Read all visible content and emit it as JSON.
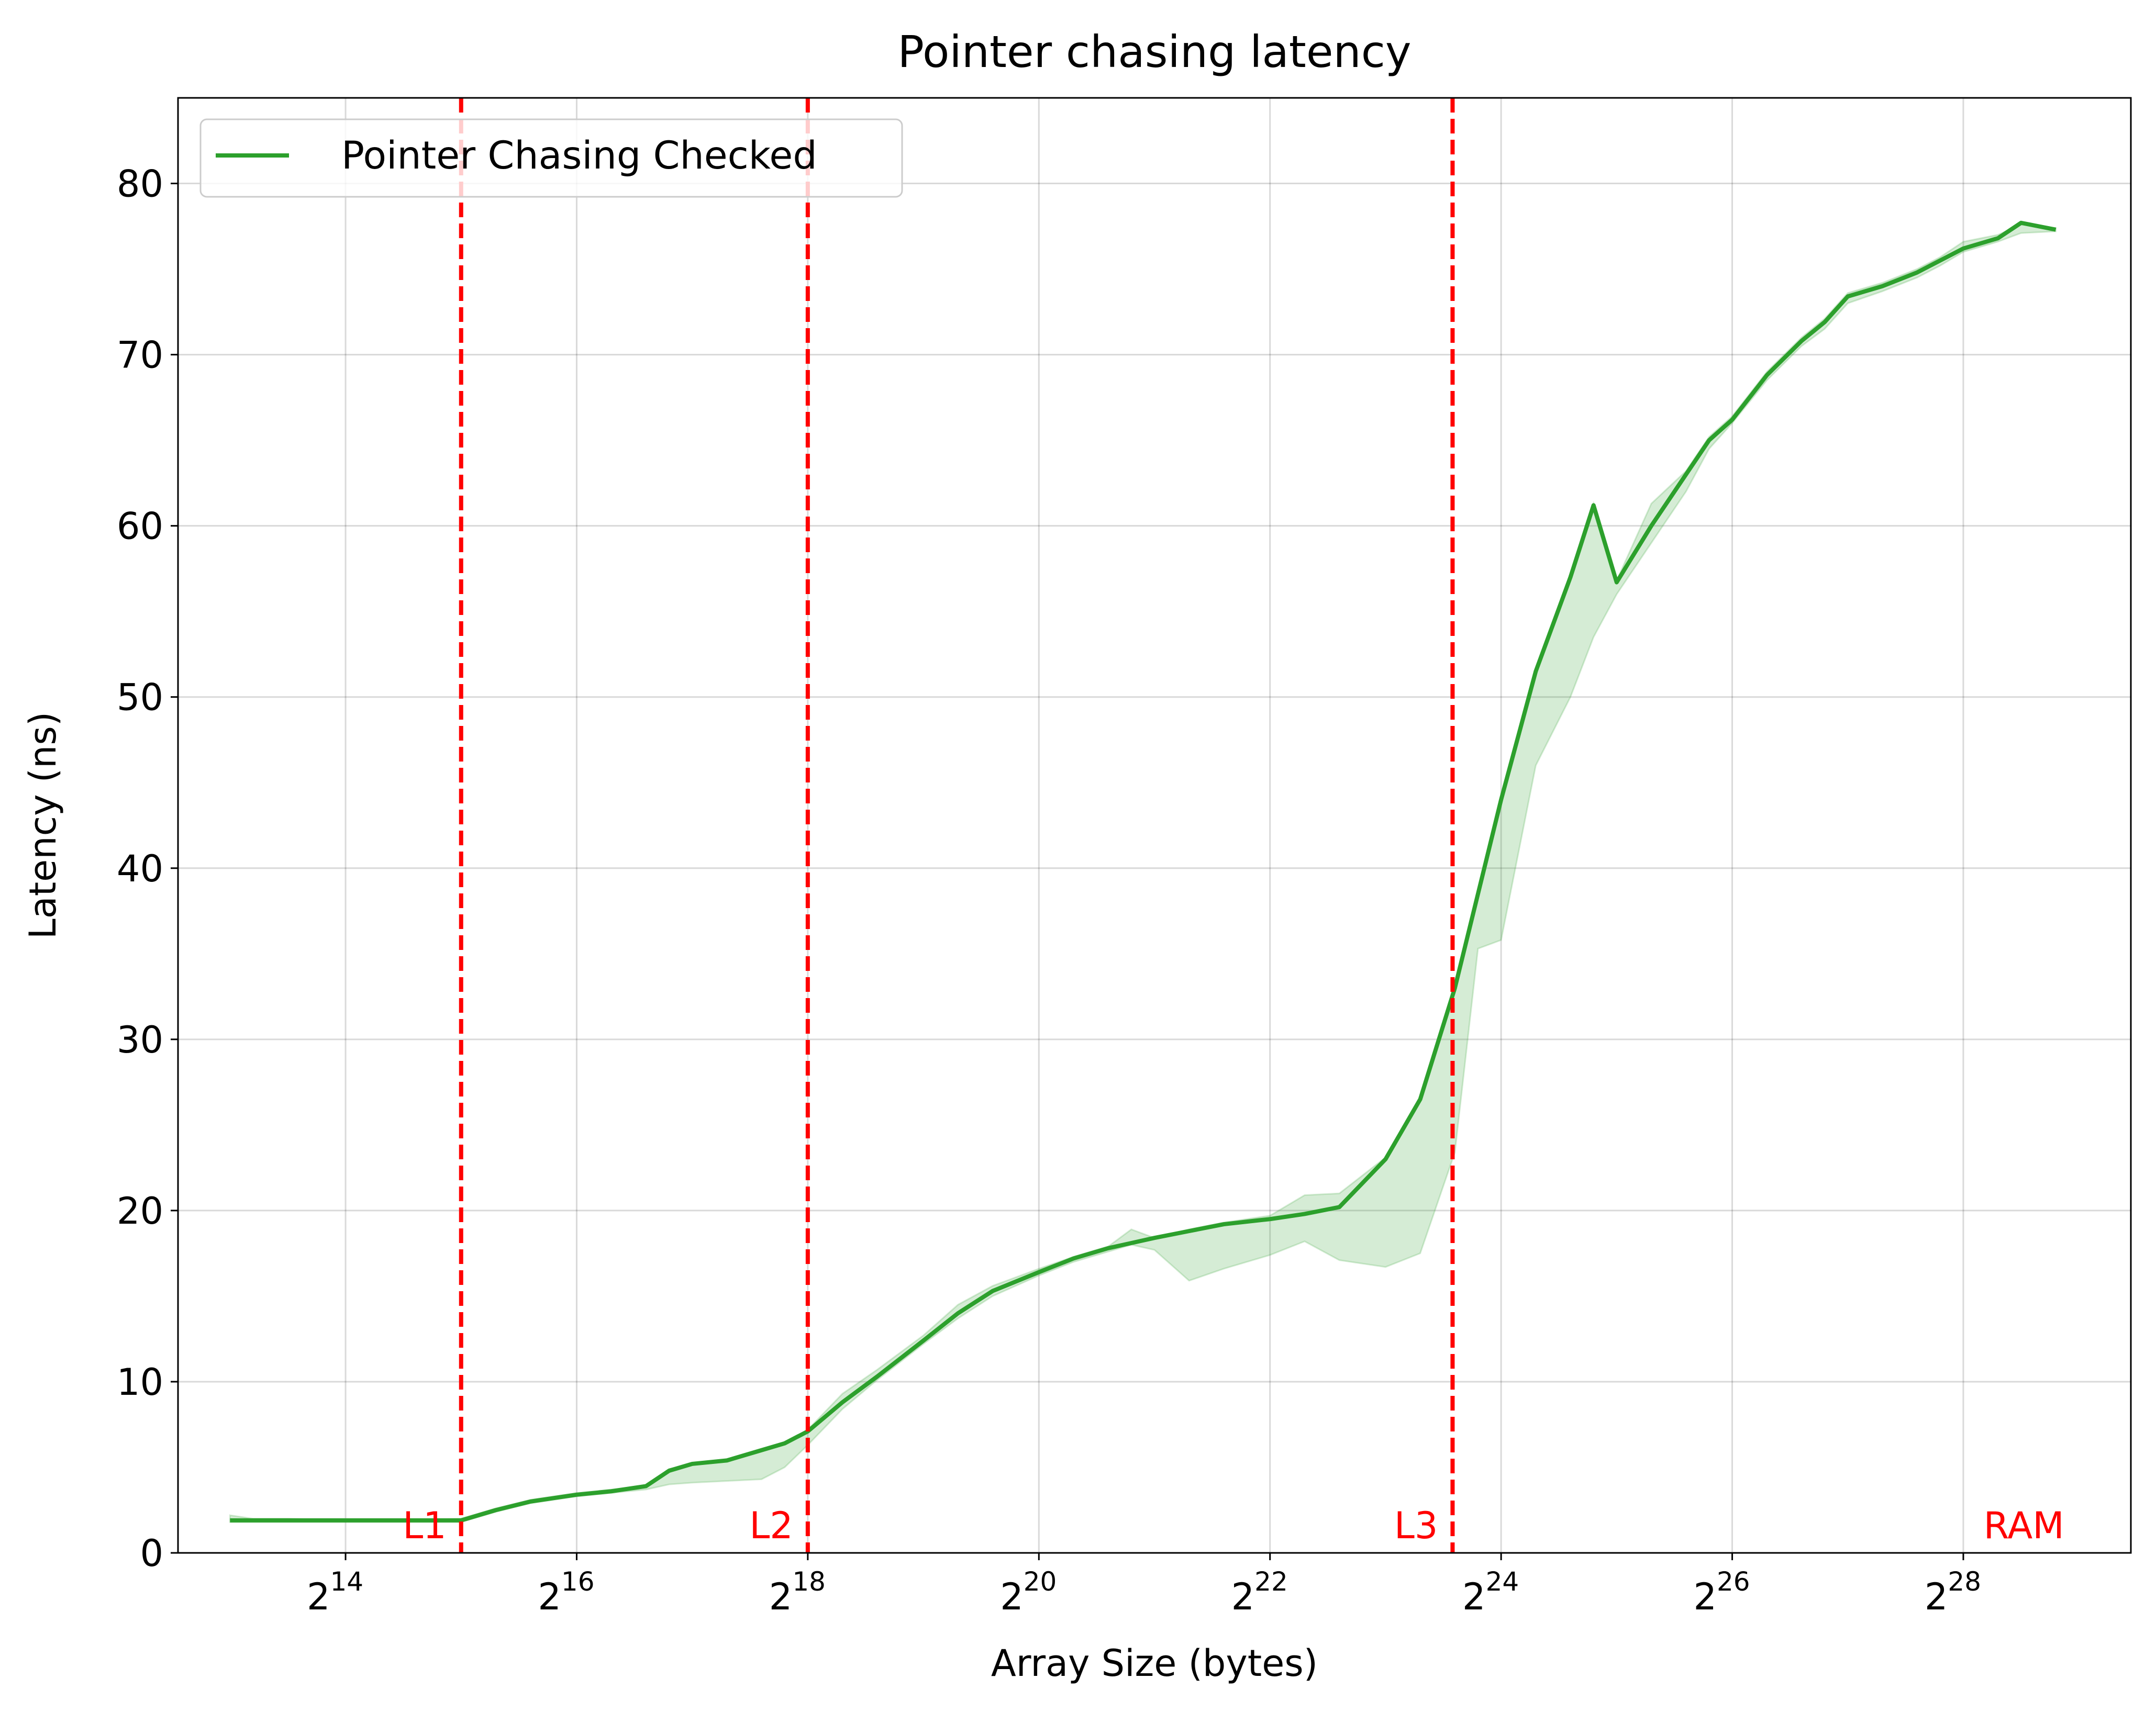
{
  "chart_data": {
    "type": "line",
    "title": "Pointer chasing latency",
    "xlabel": "Array Size (bytes)",
    "ylabel": "Latency (ns)",
    "x_scale": "log2",
    "xlim_log2": [
      12.55,
      29.45
    ],
    "ylim": [
      0,
      85
    ],
    "grid": true,
    "legend_position": "upper left",
    "x_ticks": [
      {
        "exp": 14,
        "base": "2",
        "sup": "14"
      },
      {
        "exp": 16,
        "base": "2",
        "sup": "16"
      },
      {
        "exp": 18,
        "base": "2",
        "sup": "18"
      },
      {
        "exp": 20,
        "base": "2",
        "sup": "20"
      },
      {
        "exp": 22,
        "base": "2",
        "sup": "22"
      },
      {
        "exp": 24,
        "base": "2",
        "sup": "24"
      },
      {
        "exp": 26,
        "base": "2",
        "sup": "26"
      },
      {
        "exp": 28,
        "base": "2",
        "sup": "28"
      }
    ],
    "y_ticks": [
      0,
      10,
      20,
      30,
      40,
      50,
      60,
      70,
      80
    ],
    "series": [
      {
        "name": "Pointer Chasing Checked",
        "color": "#2ca02c",
        "band_color": "#2ca02c",
        "x_log2": [
          13.0,
          13.2,
          13.5,
          14.0,
          14.5,
          15.0,
          15.3,
          15.6,
          15.8,
          16.0,
          16.3,
          16.6,
          16.8,
          17.0,
          17.3,
          17.6,
          17.8,
          18.0,
          18.3,
          18.6,
          19.0,
          19.3,
          19.6,
          20.0,
          20.3,
          20.6,
          20.8,
          21.0,
          21.3,
          21.6,
          22.0,
          22.3,
          22.6,
          23.0,
          23.3,
          23.6,
          23.8,
          24.0,
          24.3,
          24.6,
          24.8,
          25.0,
          25.3,
          25.6,
          25.8,
          26.0,
          26.3,
          26.6,
          26.8,
          27.0,
          27.3,
          27.6,
          27.8,
          28.0,
          28.3,
          28.5,
          28.8
        ],
        "y": [
          1.9,
          1.9,
          1.9,
          1.9,
          1.9,
          1.9,
          2.5,
          3.0,
          3.2,
          3.4,
          3.6,
          3.9,
          4.8,
          5.2,
          5.4,
          6.0,
          6.4,
          7.1,
          8.8,
          10.3,
          12.4,
          14.0,
          15.3,
          16.4,
          17.2,
          17.8,
          18.1,
          18.4,
          18.8,
          19.2,
          19.5,
          19.8,
          20.2,
          23.0,
          26.5,
          33.0,
          38.5,
          44.0,
          51.5,
          57.0,
          61.2,
          56.7,
          60.0,
          63.0,
          65.0,
          66.2,
          68.8,
          70.8,
          71.9,
          73.4,
          74.0,
          74.8,
          75.5,
          76.2,
          76.8,
          77.7,
          77.3
        ],
        "band_upper": [
          2.2,
          2.0,
          2.0,
          1.9,
          1.9,
          2.0,
          2.6,
          3.1,
          3.3,
          3.5,
          3.7,
          3.9,
          4.9,
          5.2,
          5.4,
          6.0,
          6.4,
          7.2,
          9.3,
          10.7,
          12.7,
          14.5,
          15.6,
          16.6,
          17.3,
          17.9,
          18.9,
          18.4,
          18.9,
          19.3,
          19.7,
          20.9,
          21.0,
          23.1,
          26.6,
          33.1,
          38.6,
          44.1,
          51.6,
          57.1,
          61.3,
          56.8,
          61.3,
          63.2,
          65.2,
          66.4,
          69.0,
          71.0,
          72.1,
          73.6,
          74.2,
          75.0,
          75.7,
          76.6,
          77.0,
          77.6,
          77.4
        ],
        "band_lower": [
          1.8,
          1.8,
          1.8,
          1.8,
          1.8,
          1.8,
          2.4,
          2.9,
          3.1,
          3.3,
          3.5,
          3.7,
          4.0,
          4.1,
          4.2,
          4.3,
          5.0,
          6.3,
          8.4,
          10.1,
          12.2,
          13.7,
          15.0,
          16.2,
          17.0,
          17.6,
          18.0,
          17.7,
          15.9,
          16.6,
          17.4,
          18.2,
          17.1,
          16.7,
          17.5,
          23.4,
          35.3,
          35.8,
          46.0,
          50.0,
          53.5,
          56.0,
          59.0,
          62.0,
          64.5,
          66.0,
          68.5,
          70.5,
          71.5,
          73.0,
          73.7,
          74.5,
          75.2,
          76.0,
          76.6,
          77.1,
          77.2
        ]
      }
    ],
    "reference_lines": [
      {
        "label": "L1",
        "x_log2": 15.0,
        "color": "#ff0000"
      },
      {
        "label": "L2",
        "x_log2": 18.0,
        "color": "#ff0000"
      },
      {
        "label": "L3",
        "x_log2": 23.58,
        "color": "#ff0000"
      },
      {
        "label": "RAM",
        "x_log2": 29.0,
        "color": "#ff0000",
        "line": false
      }
    ]
  }
}
